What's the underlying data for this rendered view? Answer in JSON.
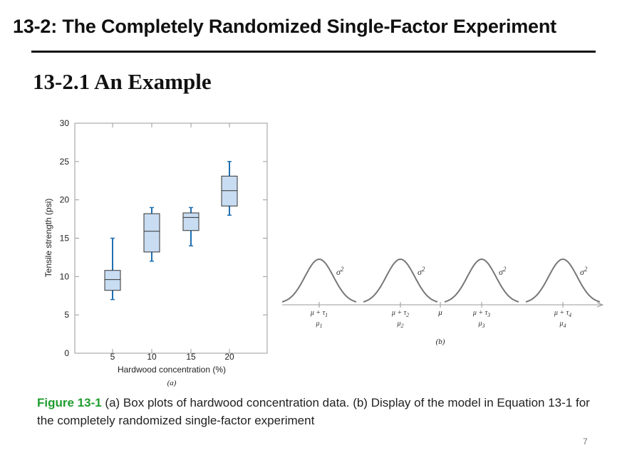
{
  "slide": {
    "title": "13-2: The Completely Randomized Single-Factor Experiment",
    "subtitle": "13-2.1 An Example",
    "page_number": "7"
  },
  "caption": {
    "figure_ref": "Figure 13-1",
    "text": " (a) Box plots of hardwood concentration data. (b) Display of the model in Equation 13-1 for the completely randomized single-factor experiment"
  },
  "chart_data": [
    {
      "type": "boxplot",
      "panel_label": "(a)",
      "xlabel": "Hardwood concentration (%)",
      "ylabel": "Tensile strength (psi)",
      "ylim": [
        0,
        30
      ],
      "yticks": [
        0,
        5,
        10,
        15,
        20,
        25,
        30
      ],
      "categories": [
        "5",
        "10",
        "15",
        "20"
      ],
      "boxes": [
        {
          "category": "5",
          "min": 7,
          "q1": 8.2,
          "median": 9.6,
          "q3": 10.8,
          "max": 15
        },
        {
          "category": "10",
          "min": 12,
          "q1": 13.2,
          "median": 15.9,
          "q3": 18.2,
          "max": 19
        },
        {
          "category": "15",
          "min": 14,
          "q1": 16.0,
          "median": 17.7,
          "q3": 18.3,
          "max": 19
        },
        {
          "category": "20",
          "min": 18,
          "q1": 19.2,
          "median": 21.2,
          "q3": 23.1,
          "max": 25
        }
      ],
      "grid": false,
      "colors": {
        "box_fill": "#c8dcf2",
        "whisker": "#1f6fb2",
        "box_edge": "#333333"
      }
    },
    {
      "type": "model-diagram",
      "panel_label": "(b)",
      "curve_color": "#777777",
      "grand_mean_label": "μ",
      "curves": [
        {
          "variance_label": "σ2",
          "top_label": "μ + τ1",
          "bottom_label": "μ1"
        },
        {
          "variance_label": "σ2",
          "top_label": "μ + τ2",
          "bottom_label": "μ2"
        },
        {
          "variance_label": "σ2",
          "top_label": "μ + τ3",
          "bottom_label": "μ3"
        },
        {
          "variance_label": "σ2",
          "top_label": "μ + τ4",
          "bottom_label": "μ4"
        }
      ]
    }
  ]
}
